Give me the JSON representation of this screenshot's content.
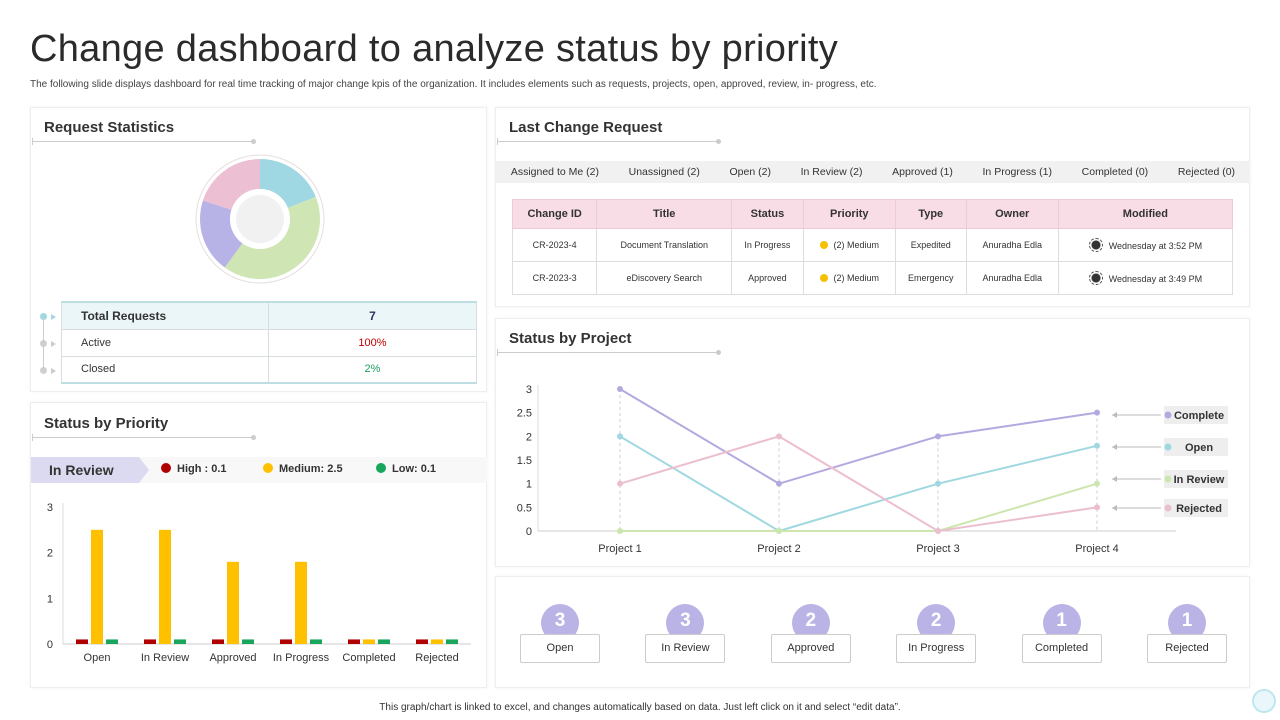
{
  "title": "Change dashboard to analyze status by priority",
  "subtitle": "The following slide displays dashboard for real time tracking of major change kpis of the organization. It includes elements such as requests, projects, open, approved, review, in- progress, etc.",
  "request_statistics": {
    "title": "Request Statistics",
    "donut": {
      "segments": [
        {
          "value": 0.19,
          "color": "#9fd8e3"
        },
        {
          "value": 0.41,
          "color": "#cfe6b4"
        },
        {
          "value": 0.2,
          "color": "#b8b3e6"
        },
        {
          "value": 0.2,
          "color": "#ecbfd2"
        }
      ]
    },
    "rows": [
      {
        "label": "Total Requests",
        "value": "7",
        "color": "#2a3560"
      },
      {
        "label": "Active",
        "value": "100%",
        "color": "#c00000"
      },
      {
        "label": "Closed",
        "value": "2%",
        "color": "#1aa15a"
      }
    ]
  },
  "status_by_priority": {
    "title": "Status by Priority",
    "selected": "In Review",
    "legend": [
      {
        "label": "High : 0.1",
        "color": "#b00000"
      },
      {
        "label": "Medium: 2.5",
        "color": "#ffc000"
      },
      {
        "label": "Low: 0.1",
        "color": "#17a65b"
      }
    ]
  },
  "last_change_request": {
    "title": "Last Change Request",
    "tabs": [
      "Assigned to Me  (2)",
      "Unassigned (2)",
      "Open (2)",
      "In Review (2)",
      "Approved (1)",
      "In Progress (1)",
      "Completed  (0)",
      "Rejected  (0)"
    ],
    "columns": [
      "Change ID",
      "Title",
      "Status",
      "Priority",
      "Type",
      "Owner",
      "Modified"
    ],
    "rows": [
      {
        "id": "CR-2023-4",
        "title": "Document Translation",
        "status": "In Progress",
        "priority": "(2) Medium",
        "type": "Expedited",
        "owner": "Anuradha  Edla",
        "modified": "Wednesday at 3:52 PM"
      },
      {
        "id": "CR-2023-3",
        "title": "eDiscovery Search",
        "status": "Approved",
        "priority": "(2) Medium",
        "type": "Emergency",
        "owner": "Anuradha  Edla",
        "modified": "Wednesday at 3:49 PM"
      }
    ],
    "priority_color": "#f5c000"
  },
  "status_by_project": {
    "title": "Status by Project"
  },
  "status_counts": [
    {
      "label": "Open",
      "count": "3"
    },
    {
      "label": "In Review",
      "count": "3"
    },
    {
      "label": "Approved",
      "count": "2"
    },
    {
      "label": "In Progress",
      "count": "2"
    },
    {
      "label": "Completed",
      "count": "1"
    },
    {
      "label": "Rejected",
      "count": "1"
    }
  ],
  "footer": "This graph/chart is linked to excel, and changes automatically based on data. Just left click on it and select “edit data”.",
  "chart_data": [
    {
      "type": "bar",
      "categories": [
        "Open",
        "In Review",
        "Approved",
        "In Progress",
        "Completed",
        "Rejected"
      ],
      "series": [
        {
          "name": "High",
          "color": "#b00000",
          "values": [
            0.1,
            0.1,
            0.1,
            0.1,
            0.1,
            0.1
          ]
        },
        {
          "name": "Medium",
          "color": "#ffc000",
          "values": [
            2.5,
            2.5,
            1.8,
            1.8,
            0.1,
            0.1
          ]
        },
        {
          "name": "Low",
          "color": "#17a65b",
          "values": [
            0.1,
            0.1,
            0.1,
            0.1,
            0.1,
            0.1
          ]
        }
      ],
      "ylim": [
        0,
        3
      ],
      "yticks": [
        "0",
        "1",
        "2",
        "3"
      ],
      "grid": false
    },
    {
      "type": "line",
      "categories": [
        "Project 1",
        "Project 2",
        "Project 3",
        "Project 4"
      ],
      "series": [
        {
          "name": "Complete",
          "color": "#b3a9e0",
          "values": [
            3,
            1,
            2,
            2.5
          ]
        },
        {
          "name": "Open",
          "color": "#9fd8e0",
          "values": [
            2,
            0,
            1,
            1.8
          ]
        },
        {
          "name": "In Review",
          "color": "#cde6ad",
          "values": [
            0,
            0,
            0,
            1
          ]
        },
        {
          "name": "Rejected",
          "color": "#ebbfd0",
          "values": [
            1,
            2,
            0,
            0.5
          ]
        }
      ],
      "ylim": [
        0,
        3
      ],
      "yticks": [
        "0",
        "0.5",
        "1",
        "1.5",
        "2",
        "2.5",
        "3"
      ],
      "grid": false,
      "legend": "right"
    }
  ]
}
